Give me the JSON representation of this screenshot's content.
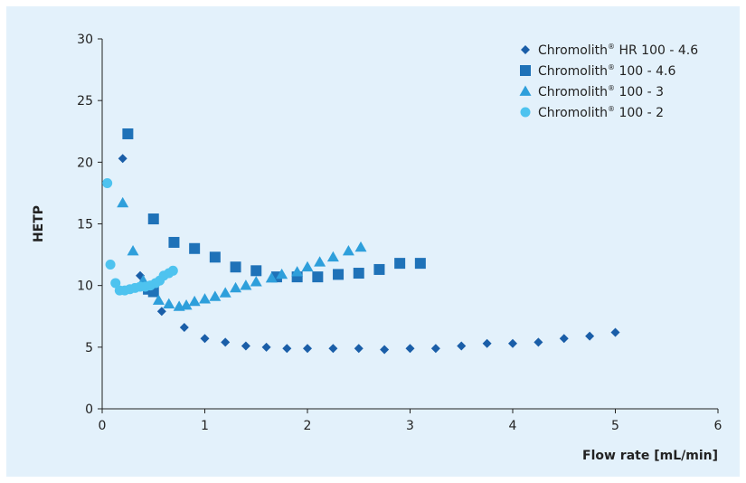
{
  "chart_data": {
    "type": "scatter",
    "title": "",
    "xlabel": "Flow rate [mL/min]",
    "ylabel": "HETP",
    "xlim": [
      0,
      6
    ],
    "ylim": [
      0,
      30
    ],
    "xticks": [
      0,
      1,
      2,
      3,
      4,
      5,
      6
    ],
    "yticks": [
      0,
      5,
      10,
      15,
      20,
      25,
      30
    ],
    "grid": false,
    "legend_position": "top-right",
    "series": [
      {
        "name_main": "Chromolith",
        "name_mark": "®",
        "name_suffix": " HR 100 - 4.6",
        "marker": "diamond",
        "color": "#1a5ea8",
        "points": [
          [
            0.2,
            20.3
          ],
          [
            0.37,
            10.8
          ],
          [
            0.58,
            7.9
          ],
          [
            0.8,
            6.6
          ],
          [
            1.0,
            5.7
          ],
          [
            1.2,
            5.4
          ],
          [
            1.4,
            5.1
          ],
          [
            1.6,
            5.0
          ],
          [
            1.8,
            4.9
          ],
          [
            2.0,
            4.9
          ],
          [
            2.25,
            4.9
          ],
          [
            2.5,
            4.9
          ],
          [
            2.75,
            4.8
          ],
          [
            3.0,
            4.9
          ],
          [
            3.25,
            4.9
          ],
          [
            3.5,
            5.1
          ],
          [
            3.75,
            5.3
          ],
          [
            4.0,
            5.3
          ],
          [
            4.25,
            5.4
          ],
          [
            4.5,
            5.7
          ],
          [
            4.75,
            5.9
          ],
          [
            5.0,
            6.2
          ]
        ]
      },
      {
        "name_main": "Chromolith",
        "name_mark": "®",
        "name_suffix": " 100 - 4.6",
        "marker": "square",
        "color": "#1f72b8",
        "points": [
          [
            0.25,
            22.3
          ],
          [
            0.5,
            15.4
          ],
          [
            0.7,
            13.5
          ],
          [
            0.9,
            13.0
          ],
          [
            1.1,
            12.3
          ],
          [
            1.3,
            11.5
          ],
          [
            1.5,
            11.2
          ],
          [
            1.7,
            10.7
          ],
          [
            1.9,
            10.7
          ],
          [
            2.1,
            10.7
          ],
          [
            2.3,
            10.9
          ],
          [
            2.5,
            11.0
          ],
          [
            2.7,
            11.3
          ],
          [
            2.9,
            11.8
          ],
          [
            3.1,
            11.8
          ],
          [
            0.45,
            9.7
          ],
          [
            0.5,
            9.5
          ]
        ]
      },
      {
        "name_main": "Chromolith",
        "name_mark": "®",
        "name_suffix": " 100 - 3",
        "marker": "triangle",
        "color": "#2e9fdb",
        "points": [
          [
            0.2,
            16.7
          ],
          [
            0.3,
            12.8
          ],
          [
            0.4,
            10.4
          ],
          [
            0.55,
            8.8
          ],
          [
            0.65,
            8.5
          ],
          [
            0.75,
            8.3
          ],
          [
            0.82,
            8.4
          ],
          [
            0.9,
            8.7
          ],
          [
            1.0,
            8.9
          ],
          [
            1.1,
            9.1
          ],
          [
            1.2,
            9.4
          ],
          [
            1.3,
            9.8
          ],
          [
            1.4,
            10.0
          ],
          [
            1.5,
            10.3
          ],
          [
            1.65,
            10.6
          ],
          [
            1.75,
            10.9
          ],
          [
            1.9,
            11.1
          ],
          [
            2.0,
            11.5
          ],
          [
            2.12,
            11.9
          ],
          [
            2.25,
            12.3
          ],
          [
            2.4,
            12.8
          ],
          [
            2.52,
            13.1
          ]
        ]
      },
      {
        "name_main": "Chromolith",
        "name_mark": "®",
        "name_suffix": " 100 - 2",
        "marker": "circle",
        "color": "#4ec3ef",
        "points": [
          [
            0.05,
            18.3
          ],
          [
            0.08,
            11.7
          ],
          [
            0.13,
            10.2
          ],
          [
            0.17,
            9.6
          ],
          [
            0.22,
            9.6
          ],
          [
            0.27,
            9.7
          ],
          [
            0.32,
            9.8
          ],
          [
            0.37,
            9.9
          ],
          [
            0.42,
            9.9
          ],
          [
            0.47,
            10.0
          ],
          [
            0.52,
            10.2
          ],
          [
            0.56,
            10.4
          ],
          [
            0.6,
            10.8
          ],
          [
            0.65,
            11.0
          ],
          [
            0.69,
            11.2
          ]
        ]
      }
    ]
  }
}
